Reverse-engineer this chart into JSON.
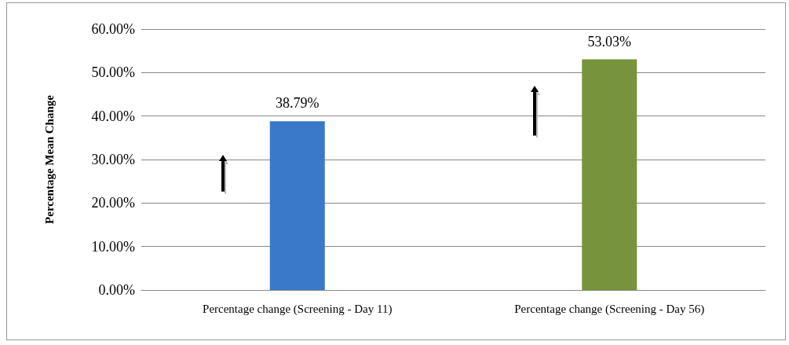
{
  "chart_data": {
    "type": "bar",
    "ylabel": "Percentage Mean Change",
    "categories": [
      "Percentage change (Screening - Day 11)",
      "Percentage change (Screening - Day 56)"
    ],
    "values": [
      38.79,
      53.03
    ],
    "colors": [
      "#3a78c9",
      "#77933c"
    ],
    "value_labels": [
      "38.79%",
      "53.03%"
    ],
    "ylim": [
      0,
      60
    ],
    "yticks": [
      {
        "value": 0,
        "label": "0.00%"
      },
      {
        "value": 10,
        "label": "10.00%"
      },
      {
        "value": 20,
        "label": "20.00%"
      },
      {
        "value": 30,
        "label": "30.00%"
      },
      {
        "value": 40,
        "label": "40.00%"
      },
      {
        "value": 50,
        "label": "50.00%"
      },
      {
        "value": 60,
        "label": "60.00%"
      }
    ],
    "grid": "y"
  }
}
